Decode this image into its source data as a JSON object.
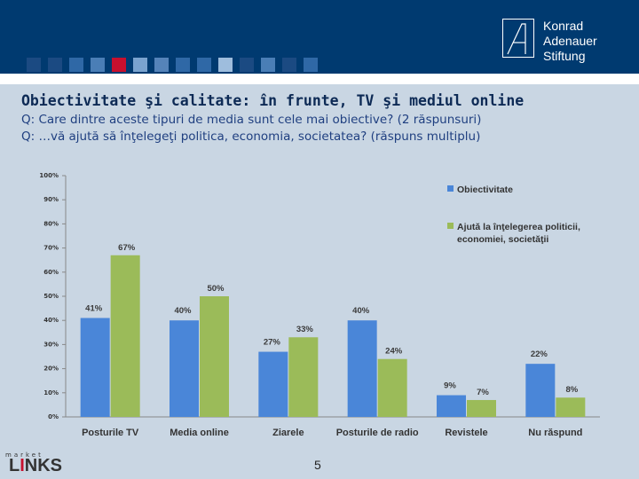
{
  "header": {
    "logo_lines": [
      "Konrad",
      "Adenauer",
      "Stiftung"
    ],
    "square_colors": [
      "#1b4a82",
      "#1b4a82",
      "#2f68a6",
      "#4a7eb6",
      "#c8102e",
      "#7aa3cf",
      "#5583b9",
      "#2f68a6",
      "#2f68a6",
      "#9ebddd",
      "#1b4a82",
      "#4a7eb6",
      "#1b4a82",
      "#2f68a6"
    ]
  },
  "slide": {
    "title": "Obiectivitate şi calitate: în frunte, TV şi mediul online",
    "question1": "Q: Care dintre aceste tipuri de media sunt cele mai obiective? (2 răspunsuri)",
    "question2": "Q: …vă ajută să înţelegeţi politica, economia, societatea? (răspuns multiplu)",
    "page_number": "5"
  },
  "footer": {
    "brand_small": "market",
    "brand_big_prefix": "L",
    "brand_big_highlight": "I",
    "brand_big_suffix": "NKS"
  },
  "chart_data": {
    "type": "bar",
    "categories": [
      "Posturile TV",
      "Media online",
      "Ziarele",
      "Posturile de radio",
      "Revistele",
      "Nu răspund"
    ],
    "series": [
      {
        "name": "Obiectivitate",
        "color": "#4a86d8",
        "values": [
          41,
          40,
          27,
          40,
          9,
          22
        ],
        "labels": [
          "41%",
          "40%",
          "27%",
          "40%",
          "9%",
          "22%"
        ]
      },
      {
        "name": "Ajută la înţelegerea politicii, economiei, societăţii",
        "legend_lines": [
          "Ajută la înţelegerea politicii,",
          "economiei, societăţii"
        ],
        "color": "#9bbb59",
        "values": [
          67,
          50,
          33,
          24,
          7,
          8
        ],
        "labels": [
          "67%",
          "50%",
          "33%",
          "24%",
          "7%",
          "8%"
        ]
      }
    ],
    "ylim": [
      0,
      100
    ],
    "yticks": [
      "0%",
      "10%",
      "20%",
      "30%",
      "40%",
      "50%",
      "60%",
      "70%",
      "80%",
      "90%",
      "100%"
    ],
    "grid": false,
    "legend": "top-right",
    "title": "",
    "xlabel": "",
    "ylabel": ""
  }
}
